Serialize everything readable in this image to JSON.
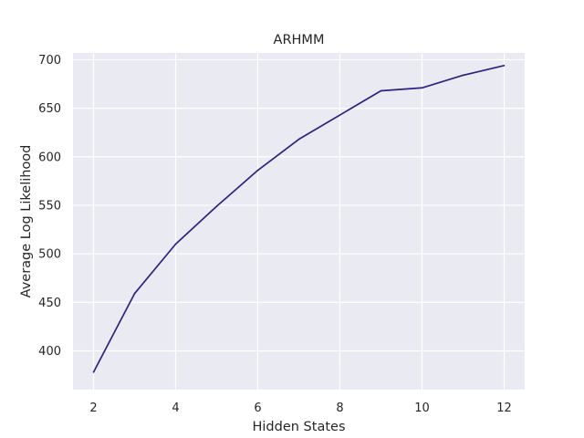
{
  "chart_data": {
    "type": "line",
    "title": "ARHMM",
    "xlabel": "Hidden States",
    "ylabel": "Average Log Likelihood",
    "xlim": [
      1.5,
      12.5
    ],
    "ylim": [
      360,
      707
    ],
    "x_ticks": [
      2,
      4,
      6,
      8,
      10,
      12
    ],
    "y_ticks": [
      400,
      450,
      500,
      550,
      600,
      650,
      700
    ],
    "grid": true,
    "background_color": "#eaeaf2",
    "grid_color": "#ffffff",
    "series": [
      {
        "color": "#2b2383",
        "x": [
          2,
          3,
          4,
          5,
          6,
          7,
          8,
          9,
          10,
          11,
          12
        ],
        "y": [
          378,
          459,
          510,
          549,
          586,
          618,
          643,
          668,
          671,
          684,
          694
        ]
      }
    ]
  }
}
